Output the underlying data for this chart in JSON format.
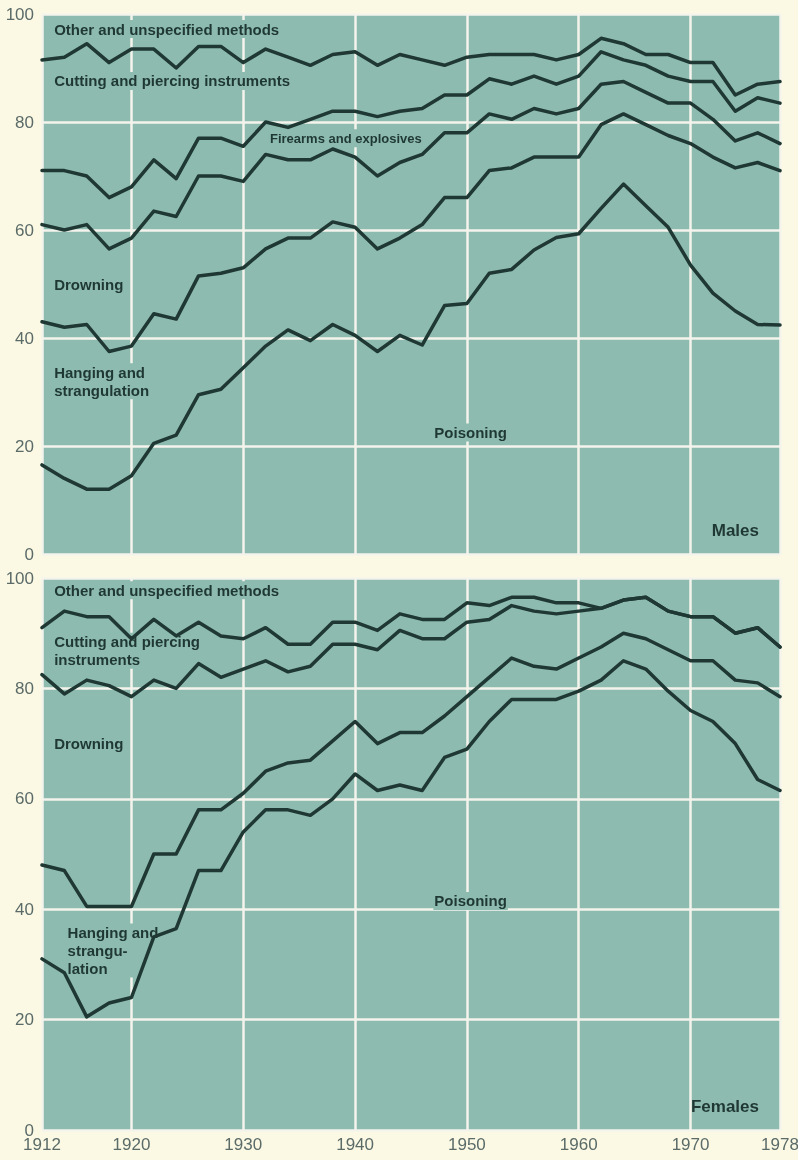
{
  "chart_data": [
    {
      "type": "line",
      "title": "Males",
      "x": [
        1912,
        1914,
        1916,
        1918,
        1920,
        1922,
        1924,
        1926,
        1928,
        1930,
        1932,
        1934,
        1936,
        1938,
        1940,
        1942,
        1944,
        1946,
        1948,
        1950,
        1952,
        1954,
        1956,
        1958,
        1960,
        1962,
        1964,
        1966,
        1968,
        1970,
        1972,
        1974,
        1976,
        1978
      ],
      "series": [
        {
          "color": "#1f3833",
          "values": [
            16.5,
            14,
            12,
            12,
            14.5,
            20.5,
            22,
            29.5,
            30.5,
            34.5,
            38.5,
            41.5,
            39.5,
            42.5,
            40.5,
            37.5,
            40.5,
            38.7,
            46,
            46.4,
            52,
            52.7,
            56.3,
            58.6,
            59.3,
            64,
            68.5,
            64.5,
            60.5,
            53.5,
            48.3,
            45,
            42.5,
            42.4
          ]
        },
        {
          "color": "#1f3833",
          "values": [
            43,
            42,
            42.5,
            37.5,
            38.5,
            44.5,
            43.5,
            51.5,
            52,
            53,
            56.5,
            58.5,
            58.5,
            61.5,
            60.5,
            56.5,
            58.5,
            61,
            66,
            66,
            71,
            71.5,
            73.5,
            73.5,
            73.5,
            79.5,
            81.5,
            79.5,
            77.5,
            76,
            73.5,
            71.5,
            72.5,
            71
          ]
        },
        {
          "color": "#1f3833",
          "values": [
            61,
            60,
            61,
            56.5,
            58.5,
            63.5,
            62.5,
            70,
            70,
            69,
            74,
            73,
            73,
            75,
            73.5,
            70,
            72.5,
            74,
            78,
            78,
            81.5,
            80.5,
            82.5,
            81.5,
            82.5,
            87,
            87.5,
            85.5,
            83.5,
            83.5,
            80.5,
            76.5,
            78,
            76
          ]
        },
        {
          "color": "#1f3833",
          "values": [
            71,
            71,
            70,
            66,
            68,
            73,
            69.5,
            77,
            77,
            75.5,
            80,
            79,
            80.5,
            82,
            82,
            81,
            82,
            82.5,
            85,
            85,
            88,
            87,
            88.5,
            87,
            88.5,
            93,
            91.5,
            90.5,
            88.5,
            87.5,
            87.5,
            82,
            84.5,
            83.5
          ]
        },
        {
          "color": "#1f3833",
          "values": [
            91.5,
            92,
            94.5,
            91,
            93.5,
            93.5,
            90,
            94,
            94,
            91,
            93.5,
            92,
            90.5,
            92.5,
            93,
            90.5,
            92.5,
            91.5,
            90.5,
            92,
            92.5,
            92.5,
            92.5,
            91.5,
            92.5,
            95.5,
            94.5,
            92.5,
            92.5,
            91,
            91,
            85,
            87,
            87.5
          ]
        }
      ],
      "annotations": [
        "Other and unspecified methods",
        "Cutting and piercing instruments",
        "Firearms and explosives",
        "Drowning",
        "Hanging and\nstrangulation",
        "Poisoning"
      ],
      "xlim": [
        1912,
        1978
      ],
      "ylim": [
        0,
        100
      ],
      "xticks": [
        1912,
        1920,
        1930,
        1940,
        1950,
        1960,
        1970,
        1978
      ],
      "yticks": [
        0,
        20,
        40,
        60,
        80,
        100
      ],
      "tick_labels": "y",
      "grid": true,
      "marker": "none",
      "line_style": "solid"
    },
    {
      "type": "line",
      "title": "Females",
      "x": [
        1912,
        1914,
        1916,
        1918,
        1920,
        1922,
        1924,
        1926,
        1928,
        1930,
        1932,
        1934,
        1936,
        1938,
        1940,
        1942,
        1944,
        1946,
        1948,
        1950,
        1952,
        1954,
        1956,
        1958,
        1960,
        1962,
        1964,
        1966,
        1968,
        1970,
        1972,
        1974,
        1976,
        1978
      ],
      "series": [
        {
          "color": "#1f3833",
          "values": [
            31,
            28.5,
            20.5,
            23,
            24,
            35,
            36.5,
            47,
            47,
            54,
            58,
            58,
            57,
            60,
            64.5,
            61.5,
            62.5,
            61.5,
            67.5,
            69,
            74,
            78,
            78,
            78,
            79.5,
            81.5,
            85,
            83.5,
            79.5,
            76,
            74,
            70,
            63.5,
            61.5
          ]
        },
        {
          "color": "#1f3833",
          "values": [
            48,
            47,
            40.5,
            40.5,
            40.5,
            50,
            50,
            58,
            58,
            61,
            65,
            66.5,
            67,
            70.5,
            74,
            70,
            72,
            72,
            75,
            78.5,
            82,
            85.5,
            84,
            83.5,
            85.5,
            87.5,
            90,
            89,
            87,
            85,
            85,
            81.5,
            81,
            78.5
          ]
        },
        {
          "color": "#1f3833",
          "values": [
            82.5,
            79,
            81.5,
            80.5,
            78.5,
            81.5,
            80,
            84.5,
            82,
            83.5,
            85,
            83,
            84,
            88,
            88,
            87,
            90.5,
            89,
            89,
            92,
            92.5,
            95,
            94,
            93.5,
            94,
            94.5,
            96,
            96.5,
            94,
            93,
            93,
            90,
            91,
            87.5
          ]
        },
        {
          "color": "#1f3833",
          "values": [
            91,
            94,
            93,
            93,
            89,
            92.5,
            89.5,
            92,
            89.5,
            89,
            91,
            88,
            88,
            92,
            92,
            90.5,
            93.5,
            92.5,
            92.5,
            95.5,
            95,
            96.5,
            96.5,
            95.5,
            95.5,
            94.5,
            96,
            96.5,
            94,
            93,
            93,
            90,
            91,
            87.5
          ]
        }
      ],
      "annotations": [
        "Other and unspecified methods",
        "Cutting and piercing\ninstruments",
        "Drowning",
        "Hanging and\nstrangu-\nlation",
        "Poisoning"
      ],
      "xlim": [
        1912,
        1978
      ],
      "ylim": [
        0,
        100
      ],
      "xticks": [
        1912,
        1920,
        1930,
        1940,
        1950,
        1960,
        1970,
        1978
      ],
      "yticks": [
        0,
        20,
        40,
        60,
        80,
        100
      ],
      "grid": true,
      "marker": "none",
      "line_style": "solid"
    }
  ]
}
